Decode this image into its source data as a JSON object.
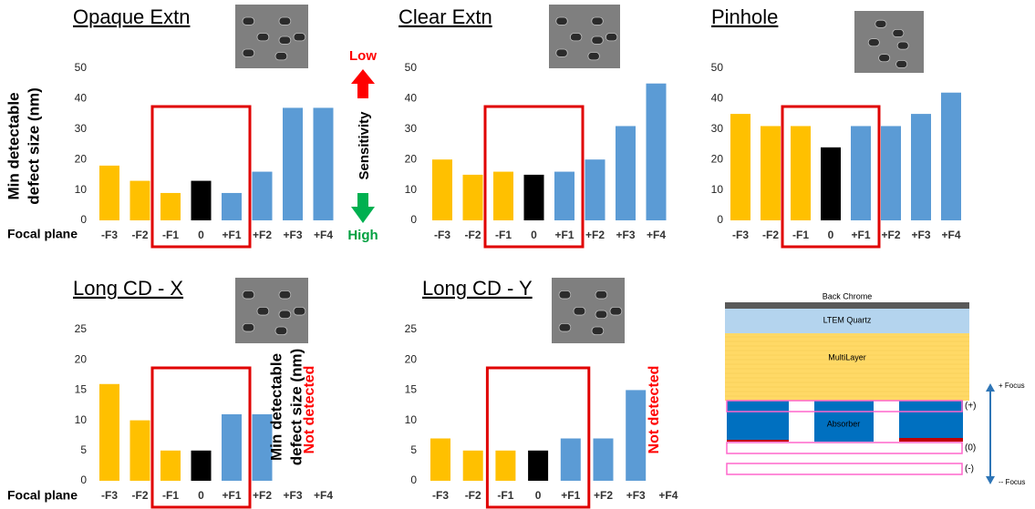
{
  "chart_data": [
    {
      "type": "bar",
      "title": "Opaque Extn",
      "ylabel": [
        "Min detectable",
        "defect size  (nm)"
      ],
      "xlabel": "Focal plane",
      "annotations": {
        "low": "Low",
        "sensitivity": "Sensitivity",
        "high": "High"
      },
      "categories": [
        "-F3",
        "-F2",
        "-F1",
        "0",
        "+F1",
        "+F2",
        "+F3",
        "+F4"
      ],
      "values": [
        18,
        13,
        9,
        13,
        9,
        16,
        37,
        37
      ],
      "colors": [
        "#ffc000",
        "#ffc000",
        "#ffc000",
        "#000000",
        "#5b9bd5",
        "#5b9bd5",
        "#5b9bd5",
        "#5b9bd5"
      ],
      "ylim": [
        0,
        50
      ],
      "yticks": [
        0,
        10,
        20,
        30,
        40,
        50
      ]
    },
    {
      "type": "bar",
      "title": "Clear Extn",
      "categories": [
        "-F3",
        "-F2",
        "-F1",
        "0",
        "+F1",
        "+F2",
        "+F3",
        "+F4"
      ],
      "values": [
        20,
        15,
        16,
        15,
        16,
        20,
        31,
        45
      ],
      "colors": [
        "#ffc000",
        "#ffc000",
        "#ffc000",
        "#000000",
        "#5b9bd5",
        "#5b9bd5",
        "#5b9bd5",
        "#5b9bd5"
      ],
      "ylim": [
        0,
        50
      ],
      "yticks": [
        0,
        10,
        20,
        30,
        40,
        50
      ]
    },
    {
      "type": "bar",
      "title": "Pinhole",
      "categories": [
        "-F3",
        "-F2",
        "-F1",
        "0",
        "+F1",
        "+F2",
        "+F3",
        "+F4"
      ],
      "values": [
        35,
        31,
        31,
        24,
        31,
        31,
        35,
        42
      ],
      "colors": [
        "#ffc000",
        "#ffc000",
        "#ffc000",
        "#000000",
        "#5b9bd5",
        "#5b9bd5",
        "#5b9bd5",
        "#5b9bd5"
      ],
      "ylim": [
        0,
        50
      ],
      "yticks": [
        0,
        10,
        20,
        30,
        40,
        50
      ]
    },
    {
      "type": "bar",
      "title": "Long CD - X",
      "ylabel": [
        "Min detectable",
        "defect size  (nm)"
      ],
      "xlabel": "Focal plane",
      "annotation": "Not detected",
      "categories": [
        "-F3",
        "-F2",
        "-F1",
        "0",
        "+F1",
        "+F2",
        "+F3",
        "+F4"
      ],
      "values": [
        16,
        10,
        5,
        5,
        11,
        11,
        null,
        null
      ],
      "colors": [
        "#ffc000",
        "#ffc000",
        "#ffc000",
        "#000000",
        "#5b9bd5",
        "#5b9bd5",
        "#5b9bd5",
        "#5b9bd5"
      ],
      "ylim": [
        0,
        25
      ],
      "yticks": [
        0,
        5,
        10,
        15,
        20,
        25
      ]
    },
    {
      "type": "bar",
      "title": "Long CD - Y",
      "annotation": "Not detected",
      "categories": [
        "-F3",
        "-F2",
        "-F1",
        "0",
        "+F1",
        "+F2",
        "+F3",
        "+F4"
      ],
      "values": [
        7,
        5,
        5,
        5,
        7,
        7,
        15,
        null
      ],
      "colors": [
        "#ffc000",
        "#ffc000",
        "#ffc000",
        "#000000",
        "#5b9bd5",
        "#5b9bd5",
        "#5b9bd5",
        "#5b9bd5"
      ],
      "ylim": [
        0,
        25
      ],
      "yticks": [
        0,
        5,
        10,
        15,
        20,
        25
      ]
    }
  ],
  "diagram": {
    "back_chrome": "Back Chrome",
    "quartz": "LTEM Quartz",
    "multilayer": "MultiLayer",
    "absorber": "Absorber",
    "plane_plus": "(+)",
    "plane_zero": "(0)",
    "plane_minus": "(-)",
    "focus_plus": "+ Focus",
    "focus_minus": "-- Focus"
  }
}
